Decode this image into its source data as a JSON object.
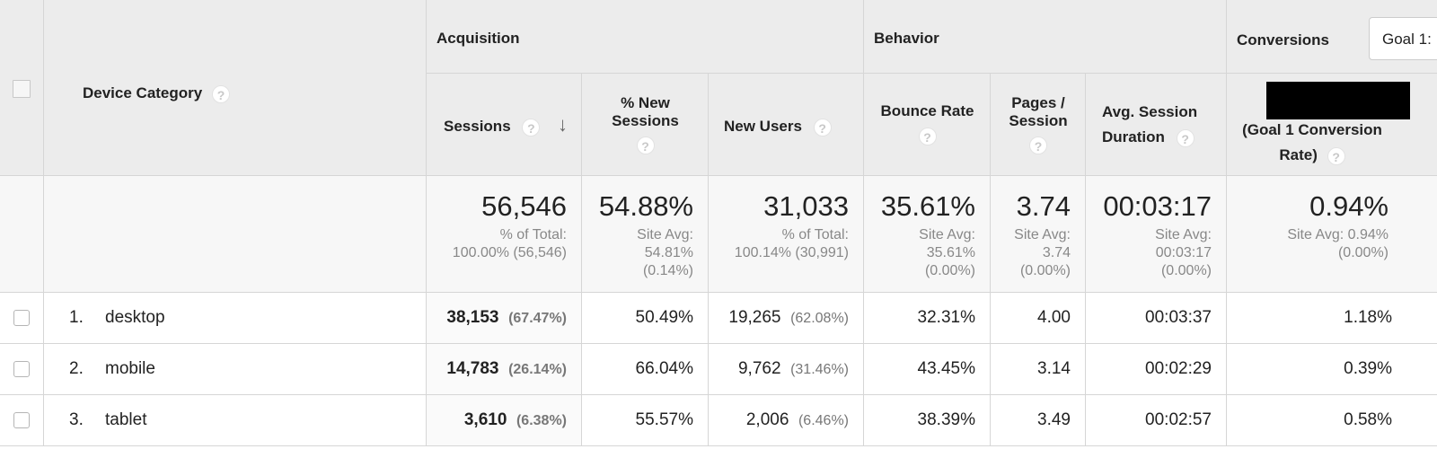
{
  "header": {
    "groups": {
      "acquisition": "Acquisition",
      "behavior": "Behavior",
      "conversions": "Conversions"
    },
    "goal_select": "Goal 1:",
    "columns": {
      "device_category": "Device Category",
      "sessions": "Sessions",
      "pct_new_sessions_1": "% New",
      "pct_new_sessions_2": "Sessions",
      "new_users": "New Users",
      "bounce_rate": "Bounce Rate",
      "pages_session_1": "Pages /",
      "pages_session_2": "Session",
      "avg_duration_1": "Avg. Session",
      "avg_duration_2": "Duration",
      "goal_rate_1": "(Goal 1 Conversion",
      "goal_rate_2": "Rate)"
    },
    "help_glyph": "?",
    "sort_glyph": "↓"
  },
  "totals": {
    "sessions": {
      "value": "56,546",
      "line1": "% of Total:",
      "line2": "100.00% (56,546)"
    },
    "pct_new": {
      "value": "54.88%",
      "line1": "Site Avg:",
      "line2": "54.81%",
      "line3": "(0.14%)"
    },
    "new_users": {
      "value": "31,033",
      "line1": "% of Total:",
      "line2": "100.14% (30,991)"
    },
    "bounce": {
      "value": "35.61%",
      "line1": "Site Avg:",
      "line2": "35.61%",
      "line3": "(0.00%)"
    },
    "pages": {
      "value": "3.74",
      "line1": "Site Avg:",
      "line2": "3.74",
      "line3": "(0.00%)"
    },
    "duration": {
      "value": "00:03:17",
      "line1": "Site Avg:",
      "line2": "00:03:17",
      "line3": "(0.00%)"
    },
    "goal": {
      "value": "0.94%",
      "line1": "Site Avg: 0.94%",
      "line2": "(0.00%)"
    }
  },
  "rows": [
    {
      "num": "1.",
      "device": "desktop",
      "sessions": "38,153",
      "sessions_pct": "(67.47%)",
      "pct_new": "50.49%",
      "new_users": "19,265",
      "new_users_pct": "(62.08%)",
      "bounce": "32.31%",
      "pages": "4.00",
      "duration": "00:03:37",
      "goal": "1.18%"
    },
    {
      "num": "2.",
      "device": "mobile",
      "sessions": "14,783",
      "sessions_pct": "(26.14%)",
      "pct_new": "66.04%",
      "new_users": "9,762",
      "new_users_pct": "(31.46%)",
      "bounce": "43.45%",
      "pages": "3.14",
      "duration": "00:02:29",
      "goal": "0.39%"
    },
    {
      "num": "3.",
      "device": "tablet",
      "sessions": "3,610",
      "sessions_pct": "(6.38%)",
      "pct_new": "55.57%",
      "new_users": "2,006",
      "new_users_pct": "(6.46%)",
      "bounce": "38.39%",
      "pages": "3.49",
      "duration": "00:02:57",
      "goal": "0.58%"
    }
  ]
}
